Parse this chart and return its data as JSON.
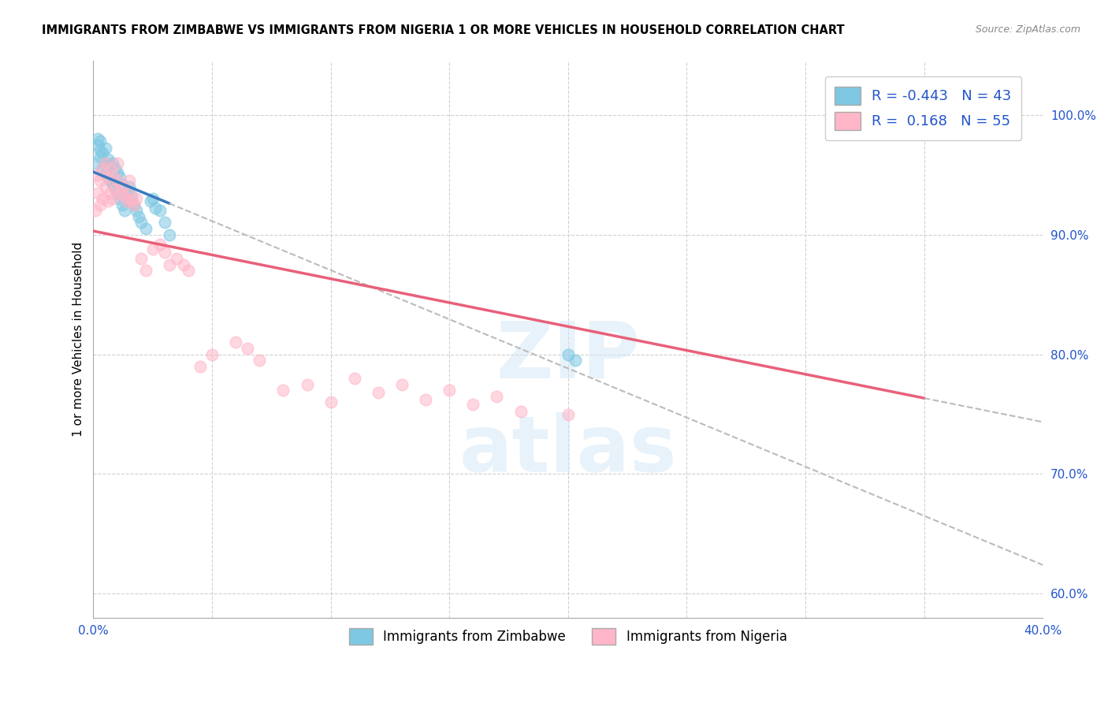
{
  "title": "IMMIGRANTS FROM ZIMBABWE VS IMMIGRANTS FROM NIGERIA 1 OR MORE VEHICLES IN HOUSEHOLD CORRELATION CHART",
  "source": "Source: ZipAtlas.com",
  "ylabel": "1 or more Vehicles in Household",
  "xlim": [
    0.0,
    0.4
  ],
  "ylim": [
    0.58,
    1.045
  ],
  "xtick_positions": [
    0.0,
    0.05,
    0.1,
    0.15,
    0.2,
    0.25,
    0.3,
    0.35,
    0.4
  ],
  "xticklabels": [
    "0.0%",
    "",
    "",
    "",
    "",
    "",
    "",
    "",
    "40.0%"
  ],
  "ytick_positions": [
    0.6,
    0.7,
    0.8,
    0.9,
    1.0
  ],
  "yticklabels": [
    "60.0%",
    "70.0%",
    "80.0%",
    "90.0%",
    "100.0%"
  ],
  "R_zimbabwe": -0.443,
  "N_zimbabwe": 43,
  "R_nigeria": 0.168,
  "N_nigeria": 55,
  "color_zimbabwe": "#7ec8e3",
  "color_nigeria": "#ffb6c8",
  "line_color_zimbabwe": "#3a7abf",
  "line_color_nigeria": "#e8607a",
  "line_color_dash": "#bbbbbb",
  "legend_text_color": "#2255cc",
  "title_fontsize": 10.5,
  "tick_fontsize": 11,
  "zimbabwe_x": [
    0.001,
    0.002,
    0.002,
    0.003,
    0.003,
    0.003,
    0.004,
    0.004,
    0.005,
    0.005,
    0.005,
    0.006,
    0.006,
    0.007,
    0.007,
    0.008,
    0.008,
    0.009,
    0.009,
    0.01,
    0.01,
    0.011,
    0.011,
    0.012,
    0.012,
    0.013,
    0.014,
    0.015,
    0.015,
    0.016,
    0.017,
    0.018,
    0.019,
    0.02,
    0.022,
    0.024,
    0.025,
    0.026,
    0.028,
    0.03,
    0.032,
    0.2,
    0.203
  ],
  "zimbabwe_y": [
    0.96,
    0.975,
    0.98,
    0.965,
    0.97,
    0.978,
    0.955,
    0.968,
    0.96,
    0.952,
    0.972,
    0.948,
    0.963,
    0.945,
    0.958,
    0.942,
    0.96,
    0.94,
    0.955,
    0.935,
    0.952,
    0.93,
    0.948,
    0.925,
    0.942,
    0.92,
    0.935,
    0.928,
    0.94,
    0.932,
    0.925,
    0.92,
    0.915,
    0.91,
    0.905,
    0.928,
    0.93,
    0.922,
    0.92,
    0.91,
    0.9,
    0.8,
    0.795
  ],
  "nigeria_x": [
    0.001,
    0.002,
    0.002,
    0.003,
    0.003,
    0.004,
    0.004,
    0.005,
    0.005,
    0.006,
    0.006,
    0.007,
    0.007,
    0.008,
    0.008,
    0.009,
    0.01,
    0.01,
    0.011,
    0.012,
    0.013,
    0.014,
    0.015,
    0.015,
    0.016,
    0.017,
    0.018,
    0.02,
    0.022,
    0.025,
    0.028,
    0.03,
    0.032,
    0.035,
    0.038,
    0.04,
    0.045,
    0.05,
    0.06,
    0.065,
    0.07,
    0.08,
    0.09,
    0.1,
    0.11,
    0.12,
    0.13,
    0.14,
    0.15,
    0.16,
    0.17,
    0.18,
    0.2,
    0.32,
    0.35
  ],
  "nigeria_y": [
    0.92,
    0.935,
    0.95,
    0.925,
    0.945,
    0.93,
    0.955,
    0.94,
    0.96,
    0.928,
    0.948,
    0.935,
    0.955,
    0.93,
    0.95,
    0.938,
    0.945,
    0.96,
    0.935,
    0.94,
    0.932,
    0.928,
    0.935,
    0.945,
    0.928,
    0.925,
    0.93,
    0.88,
    0.87,
    0.888,
    0.892,
    0.885,
    0.875,
    0.88,
    0.875,
    0.87,
    0.79,
    0.8,
    0.81,
    0.805,
    0.795,
    0.77,
    0.775,
    0.76,
    0.78,
    0.768,
    0.775,
    0.762,
    0.77,
    0.758,
    0.765,
    0.752,
    0.75,
    1.0,
    0.985
  ],
  "zim_line_x_start": 0.0,
  "zim_line_x_solid_end": 0.032,
  "zim_line_x_end": 0.4,
  "nig_line_x_start": 0.0,
  "nig_line_x_solid_end": 0.35,
  "nig_line_x_end": 0.4
}
